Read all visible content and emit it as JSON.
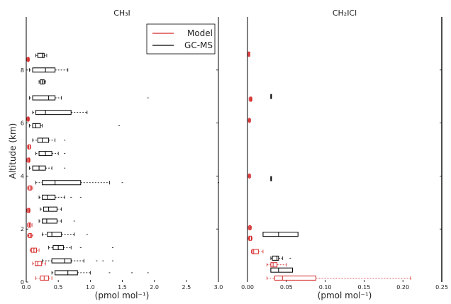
{
  "figure": {
    "ylabel": "Altitude (km)",
    "legend": {
      "position": "top-left of left panel",
      "entries": [
        "Model",
        "GC-MS"
      ]
    }
  },
  "chart_data": [
    {
      "type": "box",
      "title": "CH₃I",
      "xlabel": "(pmol mol⁻¹)",
      "ylabel": "Altitude (km)",
      "xlim": [
        0.0,
        3.0
      ],
      "ylim": [
        0,
        10
      ],
      "xticks": [
        "0.0",
        "0.5",
        "1.0",
        "1.5",
        "2.0",
        "2.5",
        "3.0"
      ],
      "yticks": [
        "0",
        "2",
        "4",
        "6",
        "8"
      ],
      "grid": false,
      "series": [
        {
          "name": "GC-MS",
          "color": "#000000",
          "boxes": [
            {
              "alt": 0.35,
              "wlo": 0.4,
              "q1": 0.45,
              "med": 0.65,
              "q3": 0.8,
              "whi": 1.0,
              "out": [
                1.3,
                1.65,
                1.9
              ]
            },
            {
              "alt": 0.8,
              "wlo": 0.25,
              "q1": 0.4,
              "med": 0.6,
              "q3": 0.7,
              "whi": 0.9,
              "out": [
                1.1,
                1.2,
                1.35
              ]
            },
            {
              "alt": 1.3,
              "wlo": 0.35,
              "q1": 0.42,
              "med": 0.5,
              "q3": 0.58,
              "whi": 0.7,
              "out": [
                0.85,
                1.35
              ]
            },
            {
              "alt": 1.8,
              "wlo": 0.25,
              "q1": 0.33,
              "med": 0.4,
              "q3": 0.55,
              "whi": 0.75,
              "out": [
                0.95
              ]
            },
            {
              "alt": 2.3,
              "wlo": 0.2,
              "q1": 0.25,
              "med": 0.32,
              "q3": 0.48,
              "whi": 0.55,
              "out": [
                0.75
              ]
            },
            {
              "alt": 2.75,
              "wlo": 0.22,
              "q1": 0.27,
              "med": 0.35,
              "q3": 0.48,
              "whi": 0.55,
              "out": []
            },
            {
              "alt": 3.2,
              "wlo": 0.2,
              "q1": 0.25,
              "med": 0.33,
              "q3": 0.45,
              "whi": 0.6,
              "out": [
                0.7,
                0.85
              ]
            },
            {
              "alt": 3.75,
              "wlo": 0.15,
              "q1": 0.25,
              "med": 0.45,
              "q3": 0.85,
              "whi": 1.3,
              "out": [
                1.5,
                3.0
              ]
            },
            {
              "alt": 4.3,
              "wlo": 0.05,
              "q1": 0.1,
              "med": 0.2,
              "q3": 0.3,
              "whi": 0.4,
              "out": [
                0.6
              ]
            },
            {
              "alt": 4.85,
              "wlo": 0.15,
              "q1": 0.2,
              "med": 0.3,
              "q3": 0.4,
              "whi": 0.5,
              "out": [
                0.6
              ]
            },
            {
              "alt": 5.35,
              "wlo": 0.1,
              "q1": 0.18,
              "med": 0.25,
              "q3": 0.35,
              "whi": 0.45,
              "out": [
                0.6
              ]
            },
            {
              "alt": 5.9,
              "wlo": 0.05,
              "q1": 0.1,
              "med": 0.15,
              "q3": 0.22,
              "whi": 0.25,
              "out": [
                1.45
              ]
            },
            {
              "alt": 6.4,
              "wlo": 0.1,
              "q1": 0.15,
              "med": 0.3,
              "q3": 0.7,
              "whi": 0.95,
              "out": []
            },
            {
              "alt": 6.95,
              "wlo": 0.05,
              "q1": 0.1,
              "med": 0.35,
              "q3": 0.45,
              "whi": 0.55,
              "out": [
                1.9
              ]
            },
            {
              "alt": 7.55,
              "wlo": 0.2,
              "q1": 0.22,
              "med": 0.25,
              "q3": 0.28,
              "whi": 0.3,
              "out": []
            },
            {
              "alt": 8.0,
              "wlo": 0.05,
              "q1": 0.1,
              "med": 0.3,
              "q3": 0.45,
              "whi": 0.65,
              "out": []
            },
            {
              "alt": 8.55,
              "wlo": 0.15,
              "q1": 0.18,
              "med": 0.25,
              "q3": 0.28,
              "whi": 0.32,
              "out": []
            }
          ]
        },
        {
          "name": "Model",
          "color": "#d62728",
          "boxes": [
            {
              "alt": 0.15,
              "wlo": 0.15,
              "q1": 0.22,
              "med": 0.28,
              "q3": 0.35,
              "whi": 0.4,
              "out": []
            },
            {
              "alt": 0.7,
              "wlo": 0.1,
              "q1": 0.14,
              "med": 0.18,
              "q3": 0.24,
              "whi": 0.3,
              "out": []
            },
            {
              "alt": 1.2,
              "wlo": 0.06,
              "q1": 0.08,
              "med": 0.12,
              "q3": 0.16,
              "whi": 0.2,
              "out": []
            },
            {
              "alt": 1.75,
              "wlo": 0.02,
              "q1": 0.04,
              "med": 0.06,
              "q3": 0.08,
              "whi": 0.1,
              "out": []
            },
            {
              "alt": 2.15,
              "wlo": 0.02,
              "q1": 0.03,
              "med": 0.05,
              "q3": 0.07,
              "whi": 0.09,
              "out": []
            },
            {
              "alt": 2.7,
              "wlo": 0.01,
              "q1": 0.02,
              "med": 0.04,
              "q3": 0.05,
              "whi": 0.06,
              "out": []
            },
            {
              "alt": 3.55,
              "wlo": 0.02,
              "q1": 0.04,
              "med": 0.06,
              "q3": 0.08,
              "whi": 0.1,
              "out": []
            },
            {
              "alt": 4.6,
              "wlo": 0.01,
              "q1": 0.02,
              "med": 0.04,
              "q3": 0.05,
              "whi": 0.06,
              "out": []
            },
            {
              "alt": 5.1,
              "wlo": 0.02,
              "q1": 0.03,
              "med": 0.04,
              "q3": 0.06,
              "whi": 0.07,
              "out": []
            },
            {
              "alt": 6.15,
              "wlo": 0.01,
              "q1": 0.02,
              "med": 0.03,
              "q3": 0.04,
              "whi": 0.05,
              "out": []
            },
            {
              "alt": 8.4,
              "wlo": 0.01,
              "q1": 0.02,
              "med": 0.03,
              "q3": 0.04,
              "whi": 0.05,
              "out": []
            }
          ]
        }
      ]
    },
    {
      "type": "box",
      "title": "CH₂ICl",
      "xlabel": "(pmol mol⁻¹)",
      "xlim": [
        0.0,
        0.25
      ],
      "ylim": [
        0,
        10
      ],
      "xticks": [
        "0.00",
        "0.05",
        "0.10",
        "0.15",
        "0.20",
        "0.25"
      ],
      "grid": false,
      "series": [
        {
          "name": "GC-MS",
          "color": "#000000",
          "boxes": [
            {
              "alt": 0.45,
              "wlo": 0.03,
              "q1": 0.03,
              "med": 0.04,
              "q3": 0.058,
              "whi": 0.058,
              "out": []
            },
            {
              "alt": 0.9,
              "wlo": 0.03,
              "q1": 0.032,
              "med": 0.038,
              "q3": 0.04,
              "whi": 0.045,
              "out": [
                0.055
              ]
            },
            {
              "alt": 1.8,
              "wlo": 0.02,
              "q1": 0.02,
              "med": 0.04,
              "q3": 0.065,
              "whi": 0.065,
              "out": []
            },
            {
              "alt": 3.9,
              "wlo": 0.03,
              "q1": 0.03,
              "med": 0.03,
              "q3": 0.03,
              "whi": 0.03,
              "out": []
            },
            {
              "alt": 7.0,
              "wlo": 0.03,
              "q1": 0.03,
              "med": 0.03,
              "q3": 0.03,
              "whi": 0.03,
              "out": []
            }
          ]
        },
        {
          "name": "Model",
          "color": "#d62728",
          "boxes": [
            {
              "alt": 0.15,
              "wlo": 0.025,
              "q1": 0.035,
              "med": 0.045,
              "q3": 0.088,
              "whi": 0.21,
              "out": []
            },
            {
              "alt": 0.65,
              "wlo": 0.025,
              "q1": 0.03,
              "med": 0.033,
              "q3": 0.038,
              "whi": 0.05,
              "out": []
            },
            {
              "alt": 1.15,
              "wlo": 0.005,
              "q1": 0.006,
              "med": 0.008,
              "q3": 0.014,
              "whi": 0.02,
              "out": []
            },
            {
              "alt": 1.65,
              "wlo": 0.001,
              "q1": 0.002,
              "med": 0.003,
              "q3": 0.005,
              "whi": 0.006,
              "out": []
            },
            {
              "alt": 2.05,
              "wlo": 0.001,
              "q1": 0.002,
              "med": 0.003,
              "q3": 0.004,
              "whi": 0.005,
              "out": []
            },
            {
              "alt": 4.0,
              "wlo": 0.001,
              "q1": 0.002,
              "med": 0.002,
              "q3": 0.003,
              "whi": 0.004,
              "out": []
            },
            {
              "alt": 6.1,
              "wlo": 0.001,
              "q1": 0.002,
              "med": 0.002,
              "q3": 0.003,
              "whi": 0.004,
              "out": []
            },
            {
              "alt": 6.9,
              "wlo": 0.002,
              "q1": 0.003,
              "med": 0.004,
              "q3": 0.005,
              "whi": 0.006,
              "out": []
            },
            {
              "alt": 8.6,
              "wlo": 0.001,
              "q1": 0.001,
              "med": 0.002,
              "q3": 0.003,
              "whi": 0.003,
              "out": []
            }
          ]
        }
      ]
    }
  ]
}
